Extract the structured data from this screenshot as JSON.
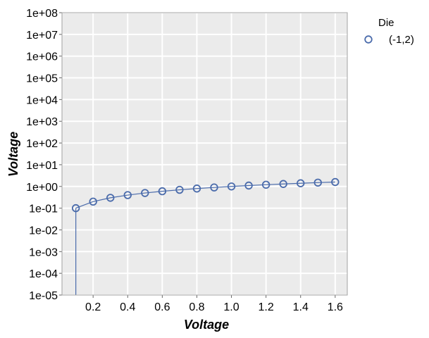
{
  "chart_data": {
    "type": "scatter",
    "xlabel": "Voltage",
    "ylabel": "Voltage",
    "y_scale": "log",
    "xlim": [
      0.02,
      1.67
    ],
    "ylim": [
      1e-05,
      100000000.0
    ],
    "x_ticks": [
      0.2,
      0.4,
      0.6,
      0.8,
      1.0,
      1.2,
      1.4,
      1.6
    ],
    "x_tick_labels": [
      "0.2",
      "0.4",
      "0.6",
      "0.8",
      "1.0",
      "1.2",
      "1.4",
      "1.6"
    ],
    "y_ticks": [
      100000000.0,
      10000000.0,
      1000000.0,
      100000.0,
      10000.0,
      1000.0,
      100.0,
      10.0,
      1.0,
      0.1,
      0.01,
      0.001,
      0.0001,
      1e-05
    ],
    "y_tick_labels": [
      "1e+08",
      "1e+07",
      "1e+06",
      "1e+05",
      "1e+04",
      "1e+03",
      "1e+02",
      "1e+01",
      "1e+00",
      "1e-01",
      "1e-02",
      "1e-03",
      "1e-04",
      "1e-05"
    ],
    "grid": true,
    "legend": {
      "title": "Die",
      "placement": "top-right-outside"
    },
    "series": [
      {
        "name": "(-1,2)",
        "color": "#4a6bab",
        "marker": "open-circle",
        "x": [
          0.1,
          0.2,
          0.3,
          0.4,
          0.5,
          0.6,
          0.7,
          0.8,
          0.9,
          1.0,
          1.1,
          1.2,
          1.3,
          1.4,
          1.5,
          1.6
        ],
        "y": [
          0.1,
          0.2,
          0.3,
          0.4,
          0.5,
          0.6,
          0.7,
          0.8,
          0.9,
          1.0,
          1.1,
          1.2,
          1.3,
          1.4,
          1.5,
          1.6
        ]
      }
    ]
  }
}
